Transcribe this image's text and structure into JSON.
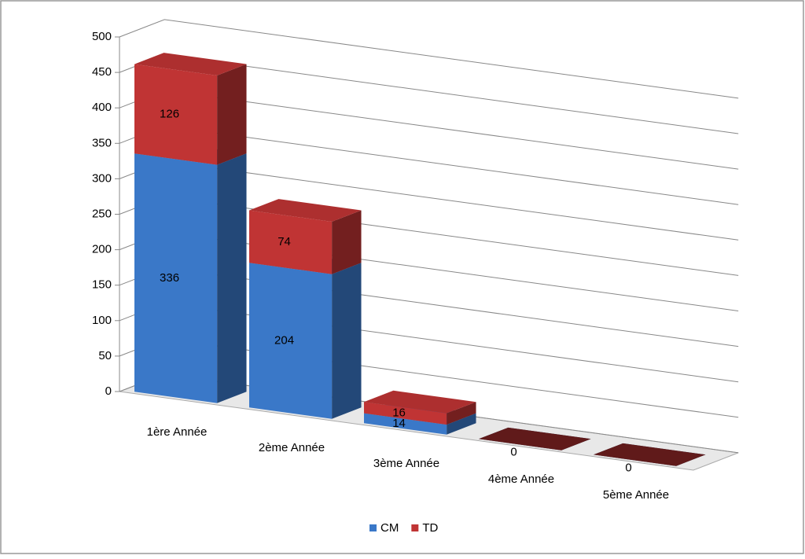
{
  "chart_data": {
    "type": "bar3d_stacked",
    "categories": [
      "1ère Année",
      "2ème Année",
      "3ème Année",
      "4ème Année",
      "5ème Année"
    ],
    "series": [
      {
        "name": "CM",
        "color": "#3a78c8",
        "values": [
          336,
          204,
          14,
          0,
          0
        ]
      },
      {
        "name": "TD",
        "color": "#c03434",
        "values": [
          126,
          74,
          16,
          0,
          0
        ]
      }
    ],
    "ylim": [
      0,
      500
    ],
    "yticks": [
      0,
      50,
      100,
      150,
      200,
      250,
      300,
      350,
      400,
      450,
      500
    ],
    "grid": true,
    "legend": "bottom"
  }
}
